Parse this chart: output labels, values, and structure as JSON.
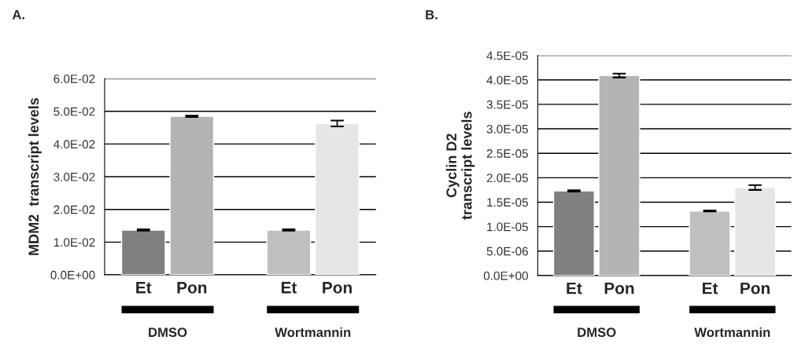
{
  "chart_data": [
    {
      "type": "bar",
      "title": "A.",
      "ylabel": "MDM2  transcript levels",
      "categories": [
        "Et",
        "Pon",
        null,
        "Et",
        "Pon"
      ],
      "values": [
        0.0137,
        0.0485,
        null,
        0.0137,
        0.0463
      ],
      "errors": [
        0.0002,
        0.0002,
        null,
        0.0002,
        0.0009
      ],
      "colors": [
        "#808080",
        "#b4b4b4",
        null,
        "#c0c0c0",
        "#e6e6e6"
      ],
      "ylim": [
        0,
        0.06
      ],
      "yticks": [
        {
          "value": 0,
          "label": "0.0E+00"
        },
        {
          "value": 0.01,
          "label": "1.0E-02"
        },
        {
          "value": 0.02,
          "label": "2.0E-02"
        },
        {
          "value": 0.03,
          "label": "3.0E-02"
        },
        {
          "value": 0.04,
          "label": "4.0E-02"
        },
        {
          "value": 0.05,
          "label": "5.0E-02"
        },
        {
          "value": 0.06,
          "label": "6.0E-02"
        }
      ],
      "grid": "y",
      "annotations": [
        "DMSO",
        "Wortmannin"
      ]
    },
    {
      "type": "bar",
      "title": "B.",
      "ylabel": "Cyclin D2\ntranscript levels",
      "categories": [
        "Et",
        "Pon",
        null,
        "Et",
        "Pon"
      ],
      "values": [
        1.73e-05,
        4.09e-05,
        null,
        1.32e-05,
        1.8e-05
      ],
      "errors": [
        1.5e-07,
        4e-07,
        null,
        1e-07,
        5e-07
      ],
      "colors": [
        "#808080",
        "#b4b4b4",
        null,
        "#c0c0c0",
        "#e6e6e6"
      ],
      "ylim": [
        0,
        4.5e-05
      ],
      "yticks": [
        {
          "value": 0,
          "label": "0.0E+00"
        },
        {
          "value": 5e-06,
          "label": "5.0E-06"
        },
        {
          "value": 1e-05,
          "label": "1.0E-05"
        },
        {
          "value": 1.5e-05,
          "label": "1.5E-05"
        },
        {
          "value": 2e-05,
          "label": "2.0E-05"
        },
        {
          "value": 2.5e-05,
          "label": "2.5E-05"
        },
        {
          "value": 3e-05,
          "label": "3.0E-05"
        },
        {
          "value": 3.5e-05,
          "label": "3.5E-05"
        },
        {
          "value": 4e-05,
          "label": "4.0E-05"
        },
        {
          "value": 4.5e-05,
          "label": "4.5E-05"
        }
      ],
      "grid": "y",
      "annotations": [
        "DMSO",
        "Wortmannin"
      ]
    }
  ]
}
